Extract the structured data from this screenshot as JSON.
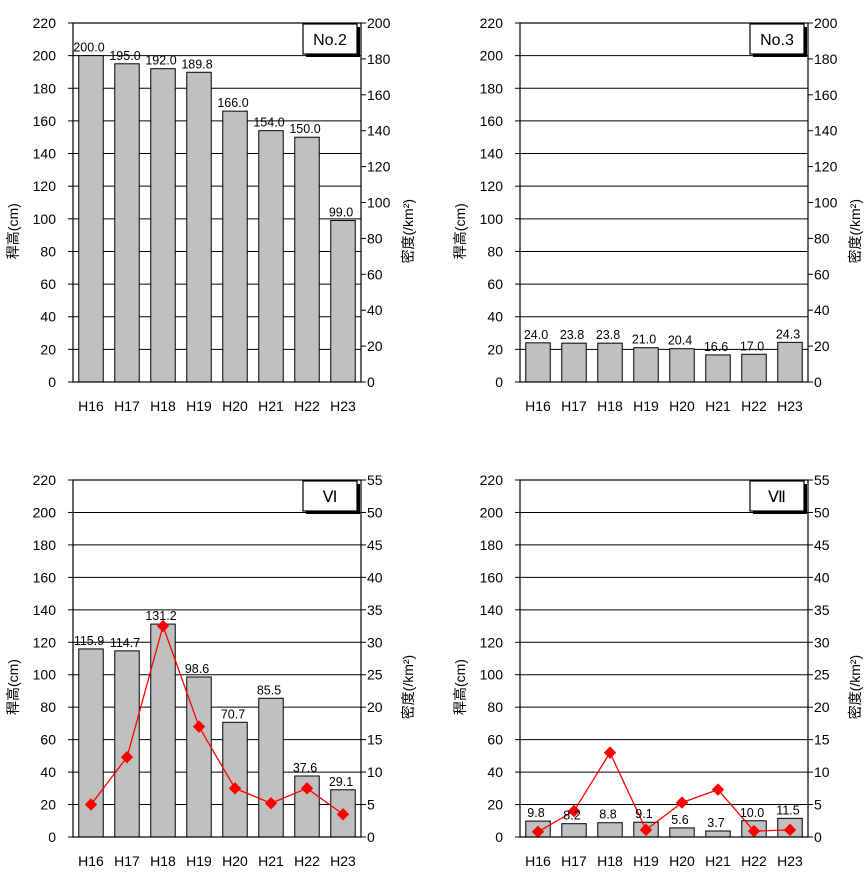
{
  "chart_data": [
    {
      "type": "bar",
      "label": "No.2",
      "categories": [
        "H16",
        "H17",
        "H18",
        "H19",
        "H20",
        "H21",
        "H22",
        "H23"
      ],
      "values": [
        200.0,
        195.0,
        192.0,
        189.8,
        166.0,
        154.0,
        150.0,
        99.0
      ],
      "value_labels": [
        "200.0",
        "195.0",
        "192.0",
        "189.8",
        "166.0",
        "154.0",
        "150.0",
        "99.0"
      ],
      "ylabel": "稈高(cm)",
      "ylabel2": "密度(/km²)",
      "ylim": [
        0,
        220
      ],
      "yticks": [
        "0",
        "20",
        "40",
        "60",
        "80",
        "100",
        "120",
        "140",
        "160",
        "180",
        "200",
        "220"
      ],
      "ylim2": [
        0,
        200
      ],
      "yticks2": [
        "0",
        "20",
        "40",
        "60",
        "80",
        "100",
        "120",
        "140",
        "160",
        "180",
        "200"
      ],
      "series2": null,
      "grid": true
    },
    {
      "type": "bar",
      "label": "No.3",
      "categories": [
        "H16",
        "H17",
        "H18",
        "H19",
        "H20",
        "H21",
        "H22",
        "H23"
      ],
      "values": [
        24.0,
        23.8,
        23.8,
        21.0,
        20.4,
        16.6,
        17.0,
        24.3
      ],
      "value_labels": [
        "24.0",
        "23.8",
        "23.8",
        "21.0",
        "20.4",
        "16.6",
        "17.0",
        "24.3"
      ],
      "ylabel": "稈高(cm)",
      "ylabel2": "密度(/km²)",
      "ylim": [
        0,
        220
      ],
      "yticks": [
        "0",
        "20",
        "40",
        "60",
        "80",
        "100",
        "120",
        "140",
        "160",
        "180",
        "200",
        "220"
      ],
      "ylim2": [
        0,
        200
      ],
      "yticks2": [
        "0",
        "20",
        "40",
        "60",
        "80",
        "100",
        "120",
        "140",
        "160",
        "180",
        "200"
      ],
      "series2": null,
      "grid": true
    },
    {
      "type": "bar",
      "label": "Ⅵ",
      "categories": [
        "H16",
        "H17",
        "H18",
        "H19",
        "H20",
        "H21",
        "H22",
        "H23"
      ],
      "values": [
        115.9,
        114.7,
        131.2,
        98.6,
        70.7,
        85.5,
        37.6,
        29.1
      ],
      "value_labels": [
        "115.9",
        "114.7",
        "131.2",
        "98.6",
        "70.7",
        "85.5",
        "37.6",
        "29.1"
      ],
      "ylabel": "稈高(cm)",
      "ylabel2": "密度(/km²)",
      "ylim": [
        0,
        220
      ],
      "yticks": [
        "0",
        "20",
        "40",
        "60",
        "80",
        "100",
        "120",
        "140",
        "160",
        "180",
        "200",
        "220"
      ],
      "ylim2": [
        0,
        55
      ],
      "yticks2": [
        "0",
        "5",
        "10",
        "15",
        "20",
        "25",
        "30",
        "35",
        "40",
        "45",
        "50",
        "55"
      ],
      "series2": {
        "type": "line",
        "axis": "right",
        "color": "#ff0000",
        "values": [
          5,
          12.3,
          32.5,
          17,
          7.5,
          5.2,
          7.5,
          3.5
        ]
      },
      "grid": true
    },
    {
      "type": "bar",
      "label": "Ⅶ",
      "categories": [
        "H16",
        "H17",
        "H18",
        "H19",
        "H20",
        "H21",
        "H22",
        "H23"
      ],
      "values": [
        9.8,
        8.2,
        8.8,
        9.1,
        5.6,
        3.7,
        10.0,
        11.5
      ],
      "value_labels": [
        "9.8",
        "8.2",
        "8.8",
        "9.1",
        "5.6",
        "3.7",
        "10.0",
        "11.5"
      ],
      "ylabel": "稈高(cm)",
      "ylabel2": "密度(/km²)",
      "ylim": [
        0,
        220
      ],
      "yticks": [
        "0",
        "20",
        "40",
        "60",
        "80",
        "100",
        "120",
        "140",
        "160",
        "180",
        "200",
        "220"
      ],
      "ylim2": [
        0,
        55
      ],
      "yticks2": [
        "0",
        "5",
        "10",
        "15",
        "20",
        "25",
        "30",
        "35",
        "40",
        "45",
        "50",
        "55"
      ],
      "series2": {
        "type": "line",
        "axis": "right",
        "color": "#ff0000",
        "values": [
          0.8,
          4,
          13,
          1.1,
          5.3,
          7.3,
          0.9,
          1.1
        ]
      },
      "grid": true
    }
  ],
  "colors": {
    "bar_fill": "#c0c0c0",
    "line": "#ff0000"
  }
}
